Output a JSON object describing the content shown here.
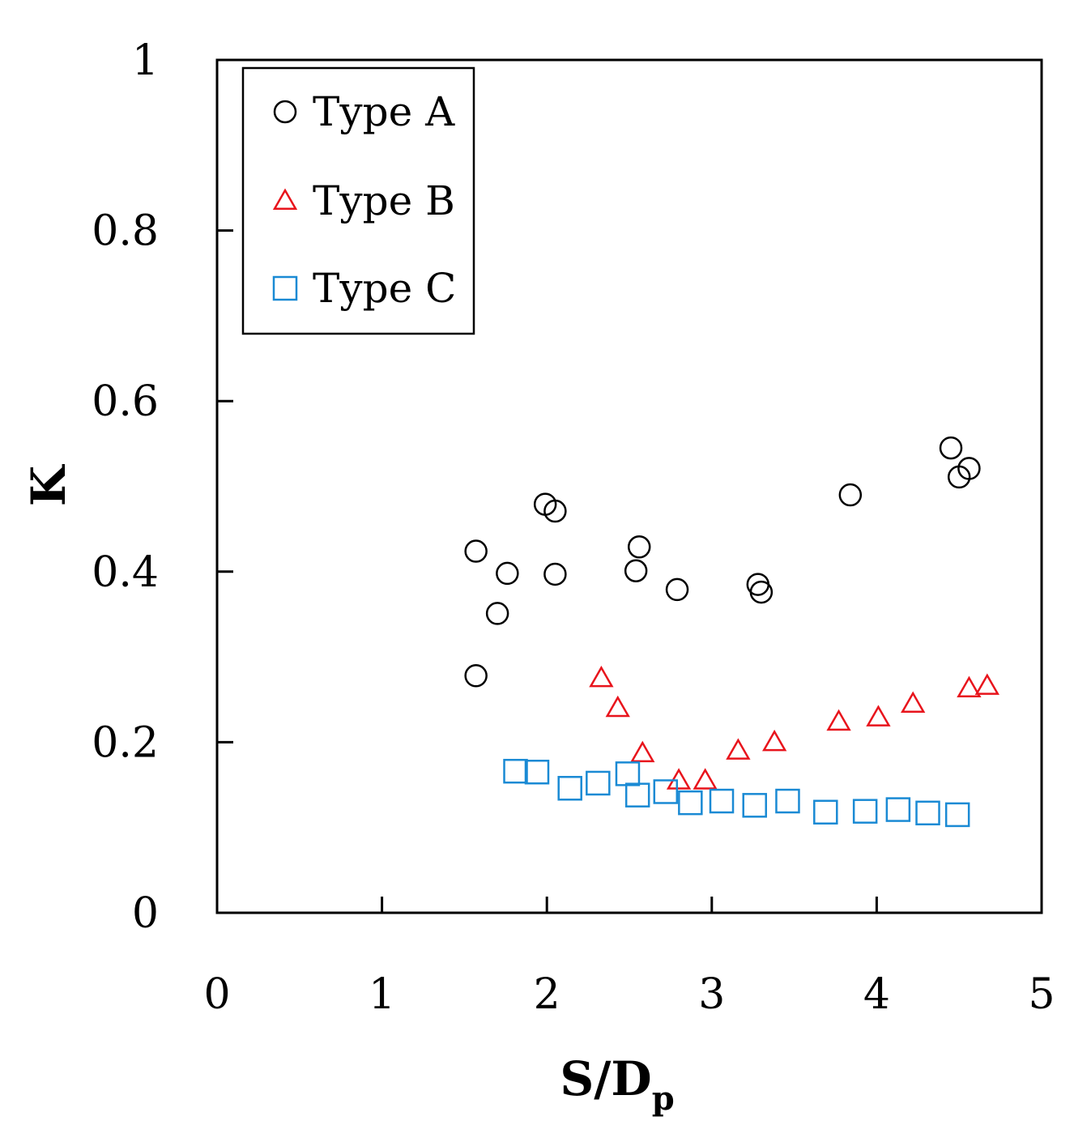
{
  "chart_data": {
    "type": "scatter",
    "xlabel": "S/D",
    "xlabel_subscript": "p",
    "ylabel": "K",
    "xlim": [
      0,
      5
    ],
    "ylim": [
      0,
      1
    ],
    "x_ticks": [
      0,
      1,
      2,
      3,
      4,
      5
    ],
    "y_ticks": [
      0,
      0.2,
      0.4,
      0.6,
      0.8,
      1
    ],
    "x_tick_labels": [
      "0",
      "1",
      "2",
      "3",
      "4",
      "5"
    ],
    "y_tick_labels": [
      "0",
      "0.2",
      "0.4",
      "0.6",
      "0.8",
      "1"
    ],
    "grid": false,
    "legend_position": "top-left",
    "series": [
      {
        "name": "Type A",
        "marker": "circle",
        "color": "#000000",
        "points": [
          [
            1.57,
            0.424
          ],
          [
            1.57,
            0.278
          ],
          [
            1.7,
            0.351
          ],
          [
            1.76,
            0.398
          ],
          [
            1.99,
            0.479
          ],
          [
            2.05,
            0.471
          ],
          [
            2.05,
            0.397
          ],
          [
            2.54,
            0.401
          ],
          [
            2.56,
            0.429
          ],
          [
            2.79,
            0.379
          ],
          [
            3.28,
            0.385
          ],
          [
            3.3,
            0.376
          ],
          [
            3.84,
            0.49
          ],
          [
            4.45,
            0.545
          ],
          [
            4.5,
            0.511
          ],
          [
            4.56,
            0.521
          ]
        ]
      },
      {
        "name": "Type B",
        "marker": "triangle",
        "color": "#e8141c",
        "points": [
          [
            2.33,
            0.275
          ],
          [
            2.43,
            0.24
          ],
          [
            2.58,
            0.187
          ],
          [
            2.8,
            0.155
          ],
          [
            2.96,
            0.155
          ],
          [
            3.16,
            0.19
          ],
          [
            3.38,
            0.2
          ],
          [
            3.77,
            0.224
          ],
          [
            4.01,
            0.229
          ],
          [
            4.22,
            0.245
          ],
          [
            4.56,
            0.263
          ],
          [
            4.67,
            0.266
          ]
        ]
      },
      {
        "name": "Type C",
        "marker": "square",
        "color": "#1a8ad4",
        "points": [
          [
            1.81,
            0.166
          ],
          [
            1.94,
            0.165
          ],
          [
            2.14,
            0.146
          ],
          [
            2.31,
            0.152
          ],
          [
            2.49,
            0.163
          ],
          [
            2.55,
            0.138
          ],
          [
            2.72,
            0.142
          ],
          [
            2.87,
            0.129
          ],
          [
            3.06,
            0.131
          ],
          [
            3.26,
            0.126
          ],
          [
            3.46,
            0.131
          ],
          [
            3.69,
            0.118
          ],
          [
            3.93,
            0.119
          ],
          [
            4.13,
            0.121
          ],
          [
            4.31,
            0.117
          ],
          [
            4.49,
            0.115
          ]
        ]
      }
    ]
  }
}
